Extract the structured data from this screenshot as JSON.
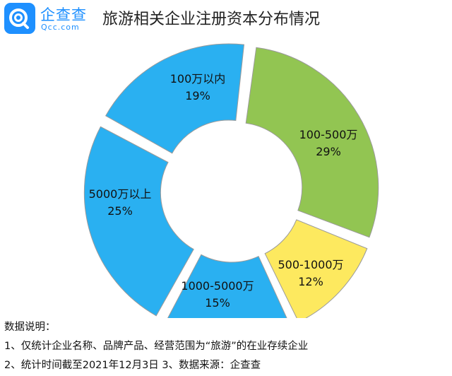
{
  "brand": {
    "name": "企查查",
    "sub": "Qcc.com",
    "color": "#1e90ff"
  },
  "title": "旅游相关企业注册资本分布情况",
  "chart_data": {
    "type": "pie",
    "variant": "donut",
    "title": "旅游相关企业注册资本分布情况",
    "slices": [
      {
        "label": "100-500万",
        "value": 29,
        "value_label": "29%",
        "color": "#92c552"
      },
      {
        "label": "500-1000万",
        "value": 12,
        "value_label": "12%",
        "color": "#fde95f"
      },
      {
        "label": "1000-5000万",
        "value": 15,
        "value_label": "15%",
        "color": "#2ab0f1"
      },
      {
        "label": "5000万以上",
        "value": 25,
        "value_label": "25%",
        "color": "#2ab0f1"
      },
      {
        "label": "100万以内",
        "value": 19,
        "value_label": "19%",
        "color": "#2ab0f1"
      }
    ]
  },
  "notes": [
    "数据说明：",
    "1、仅统计企业名称、品牌产品、经营范围为“旅游”的在业存续企业",
    "2、统计时间截至2021年12月3日    3、数据来源：企查查"
  ]
}
